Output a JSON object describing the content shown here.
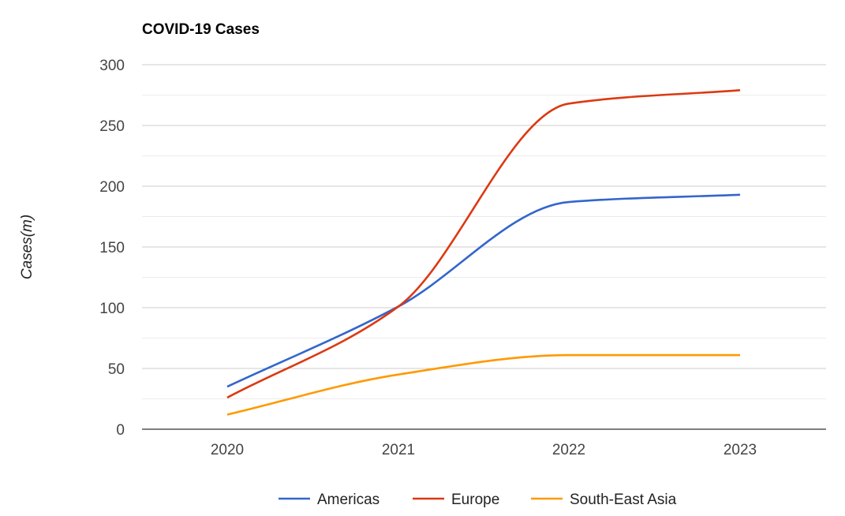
{
  "chart_data": {
    "type": "line",
    "title": "COVID-19 Cases",
    "xlabel": "",
    "ylabel": "Cases(m)",
    "categories": [
      "2020",
      "2021",
      "2022",
      "2023"
    ],
    "ylim": [
      0,
      300
    ],
    "yticks": [
      "0",
      "50",
      "100",
      "150",
      "200",
      "250",
      "300"
    ],
    "grid": true,
    "smooth": true,
    "legend_position": "bottom",
    "series": [
      {
        "name": "Americas",
        "color": "#3366cc",
        "values": [
          35,
          101,
          187,
          193
        ]
      },
      {
        "name": "Europe",
        "color": "#dc3912",
        "values": [
          26,
          101,
          268,
          279
        ]
      },
      {
        "name": "South-East Asia",
        "color": "#ff9900",
        "values": [
          12,
          45,
          61,
          61
        ]
      }
    ]
  }
}
